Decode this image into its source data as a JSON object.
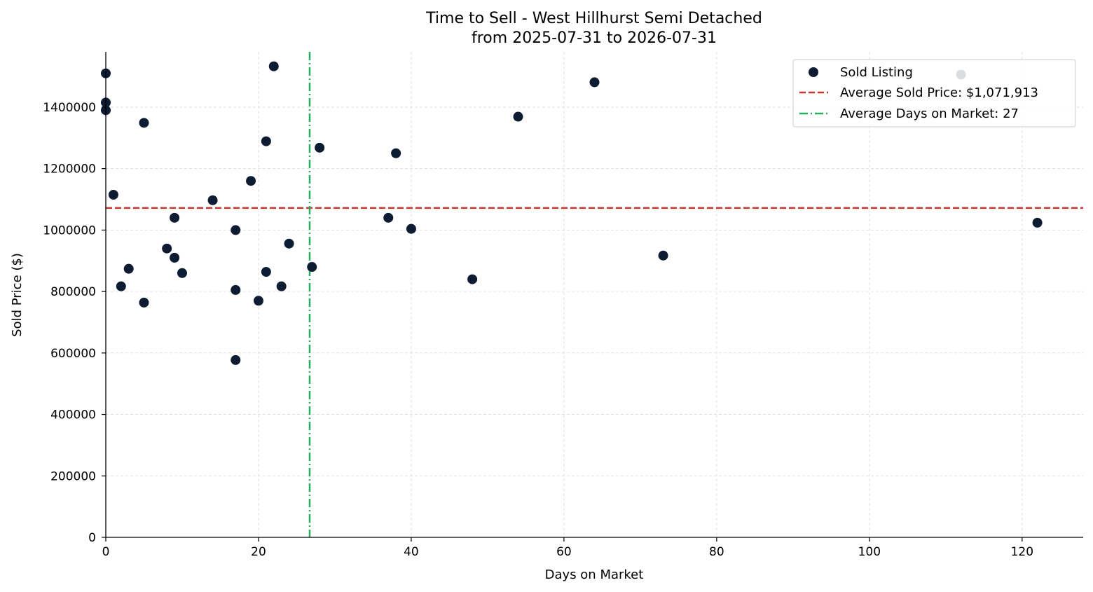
{
  "chart_data": {
    "type": "scatter",
    "title": "Time to Sell - West Hillhurst Semi Detached",
    "subtitle": "from 2025-07-31 to 2026-07-31",
    "xlabel": "Days on Market",
    "ylabel": "Sold Price ($)",
    "xlim": [
      0,
      128
    ],
    "ylim": [
      0,
      1580000
    ],
    "x_ticks": [
      0,
      20,
      40,
      60,
      80,
      100,
      120
    ],
    "y_ticks": [
      0,
      200000,
      400000,
      600000,
      800000,
      1000000,
      1200000,
      1400000
    ],
    "x_tick_labels": [
      "0",
      "20",
      "40",
      "60",
      "80",
      "100",
      "120"
    ],
    "y_tick_labels": [
      "0",
      "200000",
      "400000",
      "600000",
      "800000",
      "1000000",
      "1200000",
      "1400000"
    ],
    "grid": true,
    "legend_position": "top-right",
    "legend": {
      "sold": "Sold Listing",
      "avg_price": "Average Sold Price: $1,071,913",
      "avg_days": "Average Days on Market: 27"
    },
    "colors": {
      "points": "#0d1b33",
      "avg_price_line": "#c0392b",
      "avg_days_line": "#27ae60",
      "grid": "#d9d9d9",
      "axis": "#000000"
    },
    "average_sold_price": 1071913,
    "average_days_on_market": 26.7,
    "series": [
      {
        "name": "Sold Listing",
        "points": [
          {
            "x": 0,
            "y": 1510000
          },
          {
            "x": 0,
            "y": 1415000
          },
          {
            "x": 0,
            "y": 1390000
          },
          {
            "x": 1,
            "y": 1115000
          },
          {
            "x": 2,
            "y": 817000
          },
          {
            "x": 3,
            "y": 874000
          },
          {
            "x": 5,
            "y": 1349000
          },
          {
            "x": 5,
            "y": 764000
          },
          {
            "x": 8,
            "y": 940000
          },
          {
            "x": 9,
            "y": 1040000
          },
          {
            "x": 9,
            "y": 910000
          },
          {
            "x": 10,
            "y": 860000
          },
          {
            "x": 14,
            "y": 1097000
          },
          {
            "x": 17,
            "y": 1000000
          },
          {
            "x": 17,
            "y": 805000
          },
          {
            "x": 17,
            "y": 577000
          },
          {
            "x": 19,
            "y": 1160000
          },
          {
            "x": 20,
            "y": 770000
          },
          {
            "x": 21,
            "y": 1289000
          },
          {
            "x": 21,
            "y": 864000
          },
          {
            "x": 22,
            "y": 1533000
          },
          {
            "x": 23,
            "y": 817000
          },
          {
            "x": 24,
            "y": 956000
          },
          {
            "x": 27,
            "y": 880000
          },
          {
            "x": 28,
            "y": 1268000
          },
          {
            "x": 37,
            "y": 1040000
          },
          {
            "x": 38,
            "y": 1250000
          },
          {
            "x": 40,
            "y": 1004000
          },
          {
            "x": 48,
            "y": 840000
          },
          {
            "x": 54,
            "y": 1369000
          },
          {
            "x": 64,
            "y": 1481000
          },
          {
            "x": 73,
            "y": 917000
          },
          {
            "x": 112,
            "y": 1506000
          },
          {
            "x": 122,
            "y": 1024000
          }
        ]
      }
    ]
  }
}
